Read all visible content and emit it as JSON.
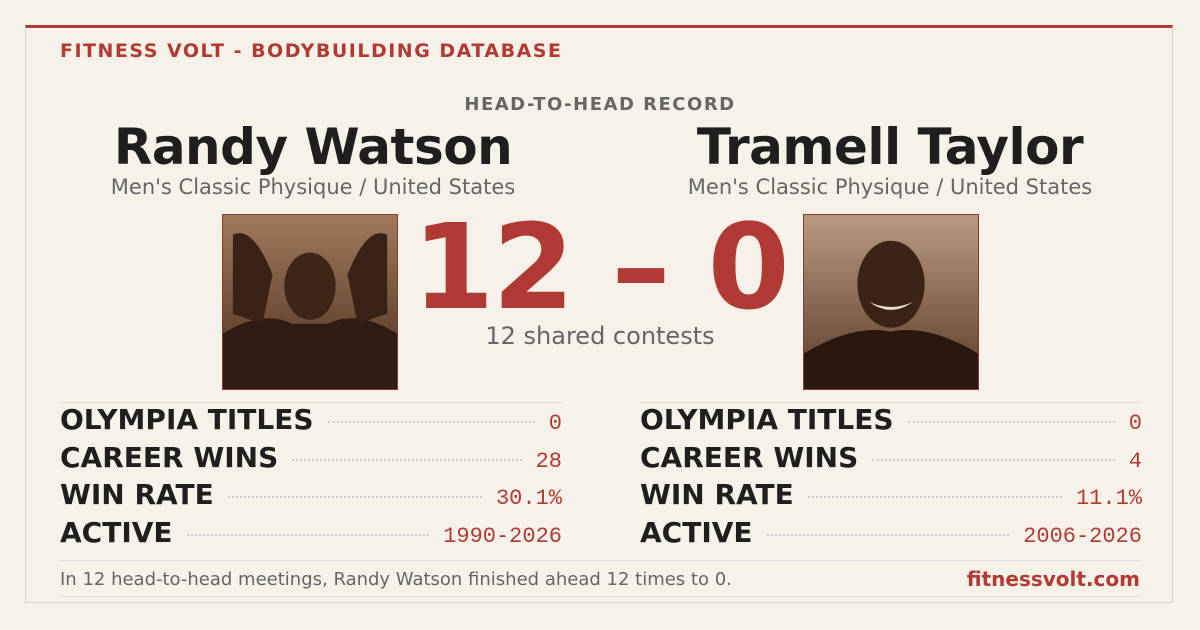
{
  "header": {
    "brand": "FITNESS VOLT - BODYBUILDING DATABASE",
    "section_title": "HEAD-TO-HEAD RECORD"
  },
  "athletes": [
    {
      "name": "Randy Watson",
      "division": "Men's Classic Physique / United States",
      "stats": [
        {
          "label": "OLYMPIA TITLES",
          "value": "0"
        },
        {
          "label": "CAREER WINS",
          "value": "28"
        },
        {
          "label": "WIN RATE",
          "value": "30.1%"
        },
        {
          "label": "ACTIVE",
          "value": "1990-2026"
        }
      ]
    },
    {
      "name": "Tramell Taylor",
      "division": "Men's Classic Physique / United States",
      "stats": [
        {
          "label": "OLYMPIA TITLES",
          "value": "0"
        },
        {
          "label": "CAREER WINS",
          "value": "4"
        },
        {
          "label": "WIN RATE",
          "value": "11.1%"
        },
        {
          "label": "ACTIVE",
          "value": "2006-2026"
        }
      ]
    }
  ],
  "score": "12 – 0",
  "shared_contests": "12 shared contests",
  "footer": {
    "summary": "In 12 head-to-head meetings, Randy Watson finished ahead 12 times to 0.",
    "site": "fitnessvolt.com"
  }
}
